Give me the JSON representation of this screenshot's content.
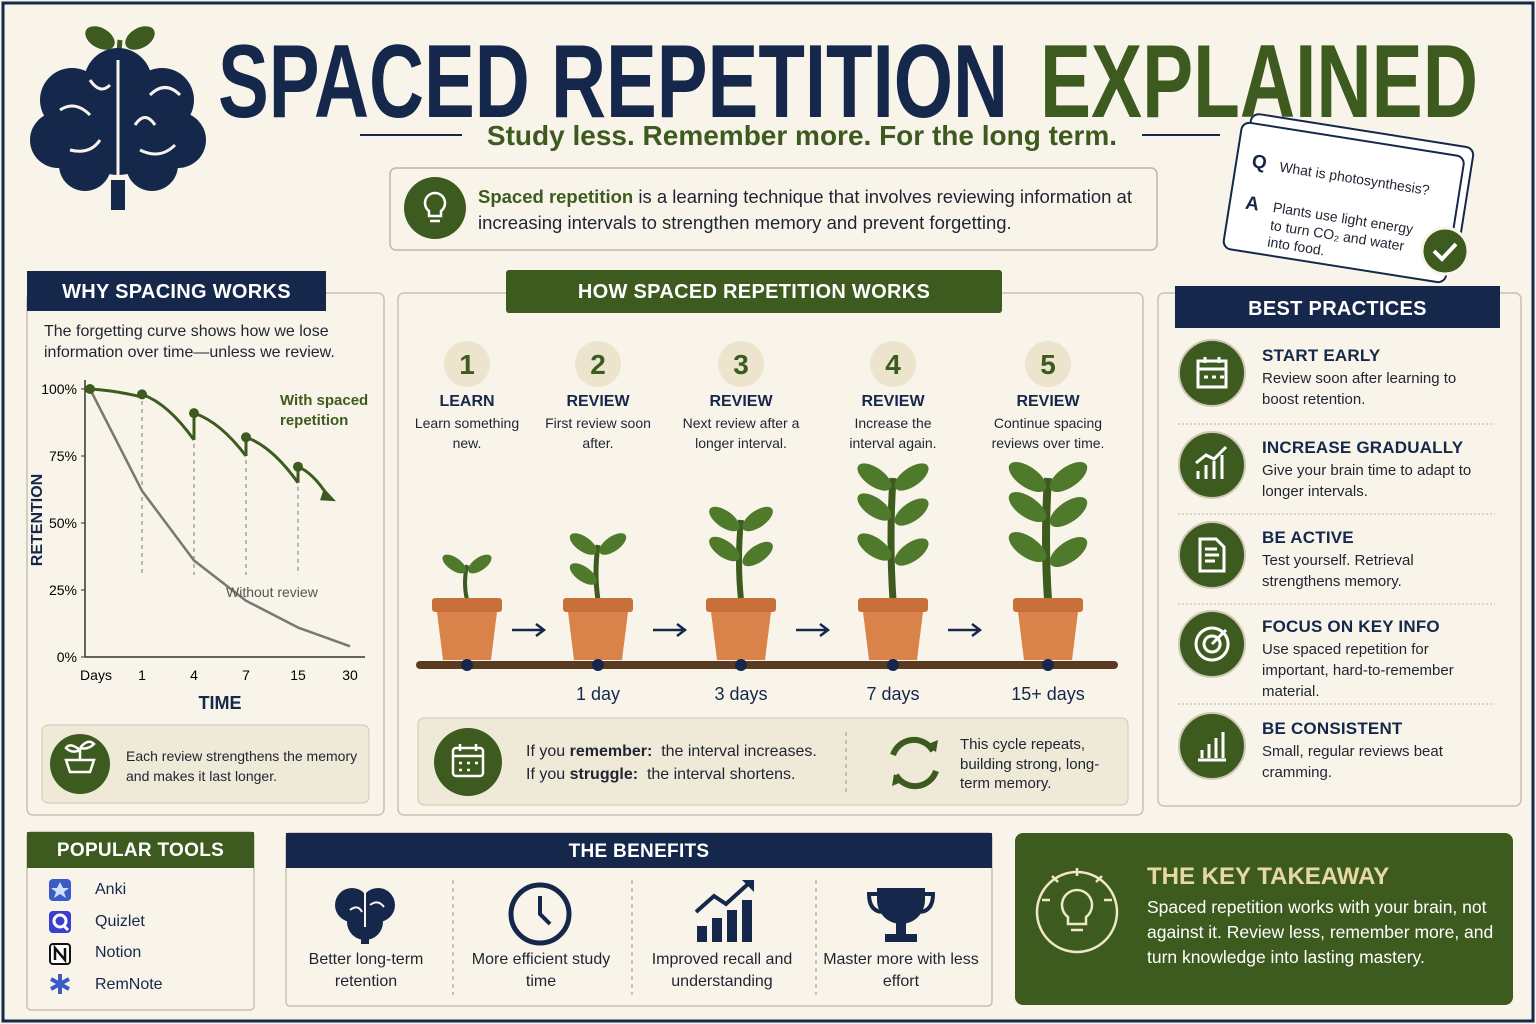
{
  "header": {
    "title_main": "SPACED REPETITION",
    "title_accent": "EXPLAINED",
    "subtitle": "Study less. Remember more. For the long term."
  },
  "definition": {
    "term": "Spaced repetition",
    "text": "is a learning technique that involves reviewing information at increasing intervals to strengthen memory and prevent forgetting."
  },
  "flashcard": {
    "q_label": "Q",
    "question": "What is photosynthesis?",
    "a_label": "A",
    "answer": "Plants use light energy to turn CO₂ and water into food."
  },
  "why": {
    "title": "WHY SPACING WORKS",
    "intro": "The forgetting curve shows how we lose information over time—unless we review.",
    "chart": {
      "type": "line",
      "ylabel": "RETENTION",
      "xlabel": "TIME",
      "categories": [
        "Days",
        "1",
        "4",
        "7",
        "15",
        "30"
      ],
      "ylim": [
        0,
        100
      ],
      "yticks": [
        {
          "value": 0,
          "label": "0%"
        },
        {
          "value": 25,
          "label": "25%"
        },
        {
          "value": 50,
          "label": "50%"
        },
        {
          "value": 75,
          "label": "75%"
        },
        {
          "value": 100,
          "label": "100%"
        }
      ],
      "series": [
        {
          "name": "With spaced repetition",
          "color": "#3e5b1f",
          "peaks": [
            100,
            98,
            91,
            82,
            71
          ],
          "dips": [
            97,
            81,
            75,
            65,
            60
          ]
        },
        {
          "name": "Without review",
          "color": "#7a7772",
          "values": [
            100,
            62,
            36,
            21,
            11,
            4
          ]
        }
      ]
    },
    "note": "Each review strengthens the memory and makes it last longer."
  },
  "how": {
    "title": "HOW SPACED REPETITION WORKS",
    "steps": [
      {
        "number": 1,
        "label": "LEARN",
        "text": "Learn something new."
      },
      {
        "number": 2,
        "label": "REVIEW",
        "text": "First review soon after."
      },
      {
        "number": 3,
        "label": "REVIEW",
        "text": "Next review after a longer interval."
      },
      {
        "number": 4,
        "label": "REVIEW",
        "text": "Increase the interval again."
      },
      {
        "number": 5,
        "label": "REVIEW",
        "text": "Continue spacing reviews over time."
      }
    ],
    "intervals": [
      "1 day",
      "3 days",
      "7 days",
      "15+ days"
    ],
    "rules": [
      {
        "prefix": "If you",
        "keyword": "remember:",
        "result": "the interval increases."
      },
      {
        "prefix": "If you",
        "keyword": "struggle:",
        "result": "the interval shortens."
      }
    ],
    "cycle": "This cycle repeats, building strong, long-term memory."
  },
  "best_practices": {
    "title": "BEST PRACTICES",
    "items": [
      {
        "title": "START EARLY",
        "text": "Review soon after learning to boost retention."
      },
      {
        "title": "INCREASE GRADUALLY",
        "text": "Give your brain time to adapt to longer intervals."
      },
      {
        "title": "BE ACTIVE",
        "text": "Test yourself. Retrieval strengthens memory."
      },
      {
        "title": "FOCUS ON KEY INFO",
        "text": "Use spaced repetition for important, hard-to-remember material."
      },
      {
        "title": "BE CONSISTENT",
        "text": "Small, regular reviews beat cramming."
      }
    ]
  },
  "tools": {
    "title": "POPULAR TOOLS",
    "items": [
      "Anki",
      "Quizlet",
      "Notion",
      "RemNote"
    ]
  },
  "benefits": {
    "title": "THE BENEFITS",
    "items": [
      "Better long-term retention",
      "More efficient study time",
      "Improved recall and understanding",
      "Master more with less effort"
    ]
  },
  "takeaway": {
    "title": "THE KEY TAKEAWAY",
    "text": "Spaced repetition works with your brain, not against it. Review less, remember more, and turn knowledge into lasting mastery."
  }
}
